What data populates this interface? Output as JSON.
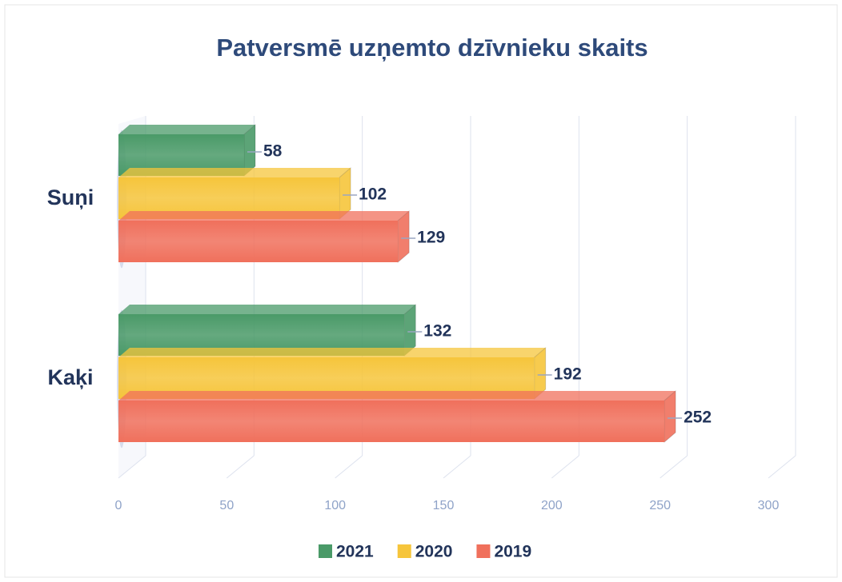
{
  "chart_data": {
    "type": "bar",
    "orientation": "horizontal",
    "title": "Patversmē uzņemto dzīvnieku skaits",
    "categories": [
      "Suņi",
      "Kaķi"
    ],
    "series": [
      {
        "name": "2021",
        "color": "#4a9a68",
        "values": [
          58,
          132
        ]
      },
      {
        "name": "2020",
        "color": "#f6c53b",
        "values": [
          102,
          192
        ]
      },
      {
        "name": "2019",
        "color": "#f0705c",
        "values": [
          129,
          252
        ]
      }
    ],
    "xlim": [
      0,
      300
    ],
    "xticks": [
      0,
      50,
      100,
      150,
      200,
      250,
      300
    ],
    "grid": true,
    "legend": "bottom"
  }
}
